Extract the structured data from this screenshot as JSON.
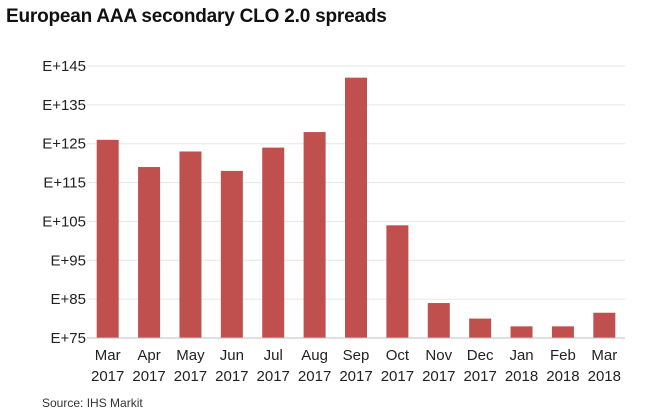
{
  "chart_data": {
    "type": "bar",
    "title": "European AAA secondary CLO 2.0 spreads",
    "source": "Source: IHS Markit",
    "categories": [
      [
        "Mar",
        "2017"
      ],
      [
        "Apr",
        "2017"
      ],
      [
        "May",
        "2017"
      ],
      [
        "Jun",
        "2017"
      ],
      [
        "Jul",
        "2017"
      ],
      [
        "Aug",
        "2017"
      ],
      [
        "Sep",
        "2017"
      ],
      [
        "Oct",
        "2017"
      ],
      [
        "Nov",
        "2017"
      ],
      [
        "Dec",
        "2017"
      ],
      [
        "Jan",
        "2018"
      ],
      [
        "Feb",
        "2018"
      ],
      [
        "Mar",
        "2018"
      ]
    ],
    "values": [
      126,
      119,
      123,
      118,
      124,
      128,
      142,
      104,
      84,
      80,
      78,
      78,
      81.5
    ],
    "ylim": [
      75,
      145
    ],
    "yticks": [
      75,
      85,
      95,
      105,
      115,
      125,
      135,
      145
    ],
    "ytick_labels": [
      "E+75",
      "E+85",
      "E+95",
      "E+105",
      "E+115",
      "E+125",
      "E+135",
      "E+145"
    ],
    "xlabel": "",
    "ylabel": "",
    "grid": true,
    "bar_color": "#c0504d",
    "grid_color": "#e6e6e6"
  }
}
